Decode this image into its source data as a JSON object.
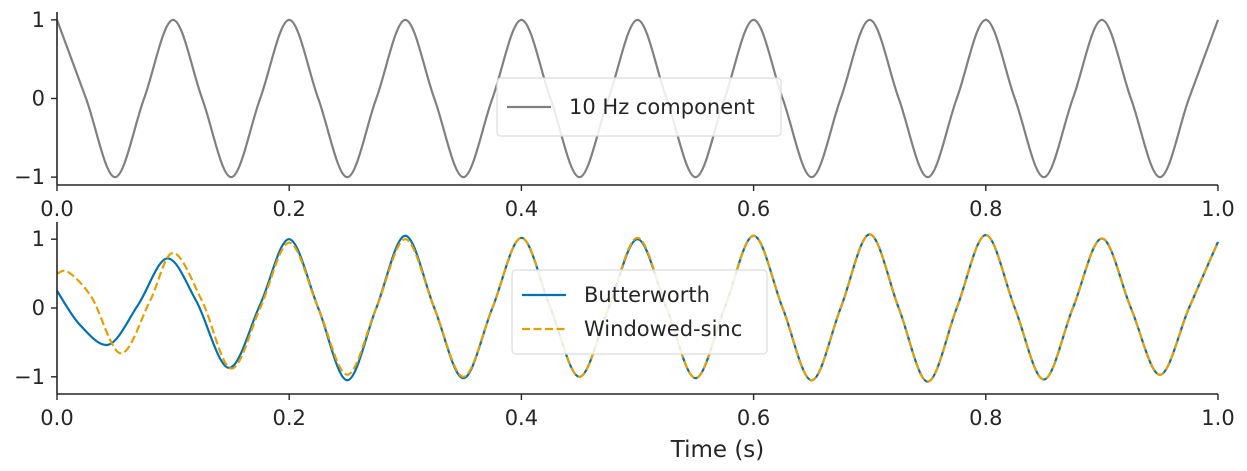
{
  "chart_data": [
    {
      "type": "line",
      "xlabel": "",
      "ylabel": "",
      "xlim": [
        0.0,
        1.0
      ],
      "ylim": [
        -1.1,
        1.1
      ],
      "xticks": [
        0.0,
        0.2,
        0.4,
        0.6,
        0.8,
        1.0
      ],
      "xtick_labels": [
        "0.0",
        "0.2",
        "0.4",
        "0.6",
        "0.8",
        "1.0"
      ],
      "yticks": [
        -1,
        0,
        1
      ],
      "ytick_labels": [
        "−1",
        "0",
        "1"
      ],
      "grid": false,
      "legend_position": "center",
      "series": [
        {
          "name": "10 Hz component",
          "color": "#808080",
          "style": "solid",
          "x": [
            0.0,
            0.025,
            0.05,
            0.075,
            0.1,
            0.125,
            0.15,
            0.175,
            0.2,
            0.225,
            0.25,
            0.275,
            0.3,
            0.325,
            0.35,
            0.375,
            0.4,
            0.425,
            0.45,
            0.475,
            0.5,
            0.525,
            0.55,
            0.575,
            0.6,
            0.625,
            0.65,
            0.675,
            0.7,
            0.725,
            0.75,
            0.775,
            0.8,
            0.825,
            0.85,
            0.875,
            0.9,
            0.925,
            0.95,
            0.975,
            1.0
          ],
          "y": [
            1,
            0,
            -1,
            0,
            1,
            0,
            -1,
            0,
            1,
            0,
            -1,
            0,
            1,
            0,
            -1,
            0,
            1,
            0,
            -1,
            0,
            1,
            0,
            -1,
            0,
            1,
            0,
            -1,
            0,
            1,
            0,
            -1,
            0,
            1,
            0,
            -1,
            0,
            1,
            0,
            -1,
            0,
            1
          ]
        }
      ]
    },
    {
      "type": "line",
      "xlabel": "Time (s)",
      "ylabel": "",
      "xlim": [
        0.0,
        1.0
      ],
      "ylim": [
        -1.25,
        1.25
      ],
      "xticks": [
        0.0,
        0.2,
        0.4,
        0.6,
        0.8,
        1.0
      ],
      "xtick_labels": [
        "0.0",
        "0.2",
        "0.4",
        "0.6",
        "0.8",
        "1.0"
      ],
      "yticks": [
        -1,
        0,
        1
      ],
      "ytick_labels": [
        "−1",
        "0",
        "1"
      ],
      "grid": false,
      "legend_position": "center",
      "series": [
        {
          "name": "Butterworth",
          "color": "#0072b2",
          "style": "solid",
          "x": [
            0.0,
            0.02,
            0.045,
            0.07,
            0.095,
            0.12,
            0.148,
            0.175,
            0.2,
            0.225,
            0.25,
            0.275,
            0.3,
            0.325,
            0.35,
            0.375,
            0.4,
            0.425,
            0.45,
            0.475,
            0.5,
            0.525,
            0.55,
            0.575,
            0.6,
            0.625,
            0.65,
            0.675,
            0.7,
            0.725,
            0.75,
            0.775,
            0.8,
            0.825,
            0.85,
            0.875,
            0.9,
            0.925,
            0.95,
            0.975,
            1.0
          ],
          "y": [
            0.25,
            -0.25,
            -0.53,
            0.05,
            0.72,
            0.1,
            -0.87,
            0.05,
            1.0,
            0.0,
            -1.05,
            0.0,
            1.05,
            0.0,
            -1.02,
            0.0,
            1.02,
            0.0,
            -1.0,
            0.0,
            1.0,
            0.0,
            -1.02,
            0.0,
            1.05,
            0.0,
            -1.05,
            0.0,
            1.07,
            0.0,
            -1.07,
            0.0,
            1.06,
            0.0,
            -1.04,
            0.0,
            1.01,
            0.0,
            -0.97,
            0.0,
            0.96
          ]
        },
        {
          "name": "Windowed-sinc",
          "color": "#e69f00",
          "style": "dashed",
          "x": [
            0.0,
            0.01,
            0.03,
            0.055,
            0.08,
            0.1,
            0.125,
            0.15,
            0.175,
            0.2,
            0.225,
            0.25,
            0.275,
            0.3,
            0.325,
            0.35,
            0.375,
            0.4,
            0.425,
            0.45,
            0.475,
            0.5,
            0.525,
            0.55,
            0.575,
            0.6,
            0.625,
            0.65,
            0.675,
            0.7,
            0.725,
            0.75,
            0.775,
            0.8,
            0.825,
            0.85,
            0.875,
            0.9,
            0.925,
            0.95,
            0.975,
            1.0
          ],
          "y": [
            0.5,
            0.52,
            0.15,
            -0.66,
            0.1,
            0.8,
            0.1,
            -0.88,
            0.0,
            0.95,
            0.0,
            -0.97,
            0.0,
            1.0,
            0.0,
            -1.0,
            0.0,
            1.02,
            0.0,
            -1.0,
            0.0,
            1.02,
            0.0,
            -1.02,
            0.0,
            1.05,
            0.0,
            -1.05,
            0.0,
            1.07,
            0.0,
            -1.07,
            0.0,
            1.06,
            0.0,
            -1.04,
            0.0,
            1.01,
            0.0,
            -0.97,
            0.0,
            0.96
          ]
        }
      ]
    }
  ]
}
